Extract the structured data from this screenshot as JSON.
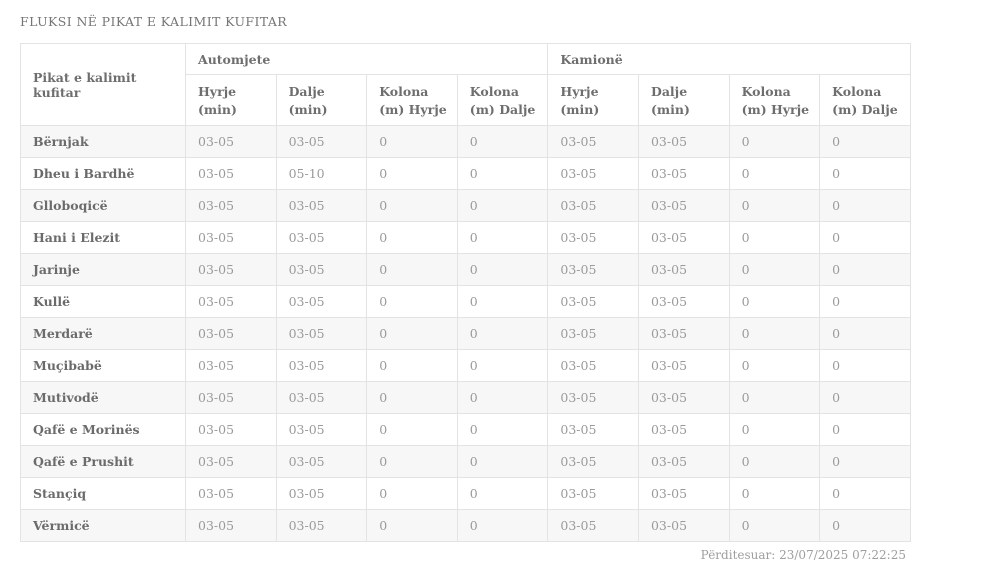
{
  "page": {
    "title": "FLUKSI NË PIKAT E KALIMIT KUFITAR",
    "updated_label": "Përditesuar: 23/07/2025 07:22:25"
  },
  "table": {
    "row_header_label": "Pikat e kalimit kufitar",
    "groups": [
      {
        "label": "Automjete"
      },
      {
        "label": "Kamionë"
      }
    ],
    "sub_headers": [
      "Hyrje (min)",
      "Dalje (min)",
      "Kolona (m) Hyrje",
      "Kolona (m) Dalje",
      "Hyrje (min)",
      "Dalje (min)",
      "Kolona (m) Hyrje",
      "Kolona (m) Dalje"
    ],
    "rows": [
      {
        "name": "Bërnjak",
        "values": [
          "03-05",
          "03-05",
          "0",
          "0",
          "03-05",
          "03-05",
          "0",
          "0"
        ]
      },
      {
        "name": "Dheu i Bardhë",
        "values": [
          "03-05",
          "05-10",
          "0",
          "0",
          "03-05",
          "03-05",
          "0",
          "0"
        ]
      },
      {
        "name": "Glloboqicë",
        "values": [
          "03-05",
          "03-05",
          "0",
          "0",
          "03-05",
          "03-05",
          "0",
          "0"
        ]
      },
      {
        "name": "Hani i Elezit",
        "values": [
          "03-05",
          "03-05",
          "0",
          "0",
          "03-05",
          "03-05",
          "0",
          "0"
        ]
      },
      {
        "name": "Jarinje",
        "values": [
          "03-05",
          "03-05",
          "0",
          "0",
          "03-05",
          "03-05",
          "0",
          "0"
        ]
      },
      {
        "name": "Kullë",
        "values": [
          "03-05",
          "03-05",
          "0",
          "0",
          "03-05",
          "03-05",
          "0",
          "0"
        ]
      },
      {
        "name": "Merdarë",
        "values": [
          "03-05",
          "03-05",
          "0",
          "0",
          "03-05",
          "03-05",
          "0",
          "0"
        ]
      },
      {
        "name": "Muçibabë",
        "values": [
          "03-05",
          "03-05",
          "0",
          "0",
          "03-05",
          "03-05",
          "0",
          "0"
        ]
      },
      {
        "name": "Mutivodë",
        "values": [
          "03-05",
          "03-05",
          "0",
          "0",
          "03-05",
          "03-05",
          "0",
          "0"
        ]
      },
      {
        "name": "Qafë e Morinës",
        "values": [
          "03-05",
          "03-05",
          "0",
          "0",
          "03-05",
          "03-05",
          "0",
          "0"
        ]
      },
      {
        "name": "Qafë e Prushit",
        "values": [
          "03-05",
          "03-05",
          "0",
          "0",
          "03-05",
          "03-05",
          "0",
          "0"
        ]
      },
      {
        "name": "Stançiq",
        "values": [
          "03-05",
          "03-05",
          "0",
          "0",
          "03-05",
          "03-05",
          "0",
          "0"
        ]
      },
      {
        "name": "Vërmicë",
        "values": [
          "03-05",
          "03-05",
          "0",
          "0",
          "03-05",
          "03-05",
          "0",
          "0"
        ]
      }
    ]
  },
  "colors": {
    "stripe": "#f7f7f7",
    "border": "#e3e3e3",
    "header_text": "#6e6e6e",
    "value_text": "#9a9a9a",
    "title_text": "#757575"
  }
}
